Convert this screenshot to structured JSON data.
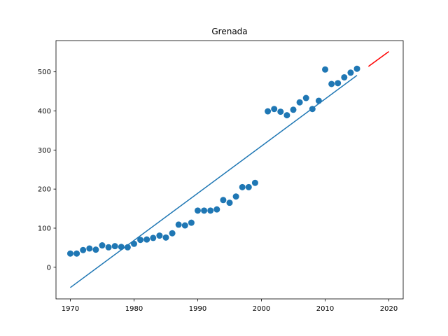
{
  "chart_data": {
    "type": "scatter",
    "title": "Grenada",
    "xlabel": "",
    "ylabel": "",
    "xlim": [
      1967.75,
      2022.25
    ],
    "ylim": [
      -81,
      580
    ],
    "xticks": [
      1970,
      1980,
      1990,
      2000,
      2010,
      2020
    ],
    "yticks": [
      0,
      100,
      200,
      300,
      400,
      500
    ],
    "grid": false,
    "legend": "none",
    "series": [
      {
        "type": "scatter",
        "color": "#1f77b4",
        "points": [
          [
            1970,
            35
          ],
          [
            1971,
            35
          ],
          [
            1972,
            44
          ],
          [
            1973,
            48
          ],
          [
            1974,
            45
          ],
          [
            1975,
            56
          ],
          [
            1976,
            51
          ],
          [
            1977,
            54
          ],
          [
            1978,
            52
          ],
          [
            1979,
            51
          ],
          [
            1980,
            60
          ],
          [
            1981,
            70
          ],
          [
            1982,
            71
          ],
          [
            1983,
            75
          ],
          [
            1984,
            81
          ],
          [
            1985,
            76
          ],
          [
            1986,
            87
          ],
          [
            1987,
            109
          ],
          [
            1988,
            107
          ],
          [
            1989,
            114
          ],
          [
            1990,
            145
          ],
          [
            1991,
            145
          ],
          [
            1992,
            145
          ],
          [
            1993,
            148
          ],
          [
            1994,
            172
          ],
          [
            1995,
            165
          ],
          [
            1996,
            181
          ],
          [
            1997,
            205
          ],
          [
            1998,
            205
          ],
          [
            1999,
            216
          ],
          [
            2001,
            399
          ],
          [
            2002,
            405
          ],
          [
            2003,
            398
          ],
          [
            2004,
            389
          ],
          [
            2005,
            403
          ],
          [
            2006,
            422
          ],
          [
            2007,
            433
          ],
          [
            2008,
            405
          ],
          [
            2009,
            426
          ],
          [
            2010,
            506
          ],
          [
            2011,
            469
          ],
          [
            2012,
            471
          ],
          [
            2013,
            486
          ],
          [
            2014,
            498
          ],
          [
            2015,
            508
          ]
        ]
      },
      {
        "type": "line",
        "color": "#1f77b4",
        "points": [
          [
            1970,
            -52
          ],
          [
            2015,
            491
          ]
        ]
      },
      {
        "type": "line",
        "color": "#ff0000",
        "points": [
          [
            2016.8,
            514
          ],
          [
            2020,
            552
          ]
        ]
      }
    ]
  }
}
